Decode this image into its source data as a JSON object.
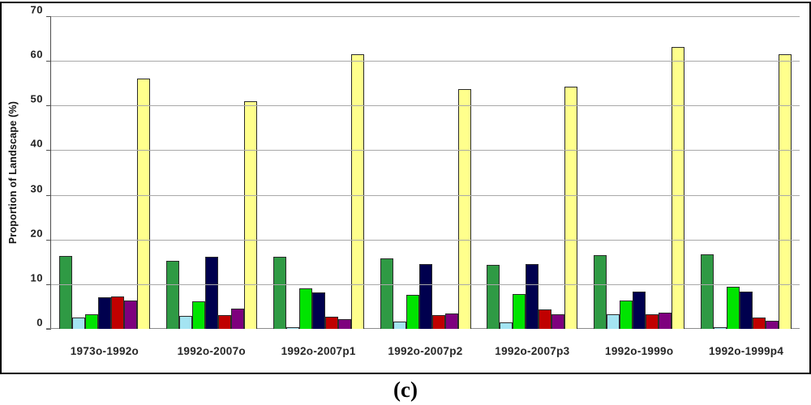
{
  "figure": {
    "caption": "(c)"
  },
  "chart_data": {
    "type": "bar",
    "title": "",
    "xlabel": "",
    "ylabel": "Proportion of Landscape  (%)",
    "ylim": [
      0,
      70
    ],
    "yticks": [
      0,
      10,
      20,
      30,
      40,
      50,
      60,
      70
    ],
    "grid": true,
    "legend_position": "none",
    "categories": [
      "1973o-1992o",
      "1992o-2007o",
      "1992o-2007p1",
      "1992o-2007p2",
      "1992o-2007p3",
      "1992o-1999o",
      "1992o-1999p4"
    ],
    "series": [
      {
        "name": "dark-green",
        "color": "#2f9a44",
        "values": [
          16.3,
          15.3,
          16.1,
          15.7,
          14.4,
          16.5,
          16.6
        ]
      },
      {
        "name": "light-blue",
        "color": "#a4e4f2",
        "values": [
          2.6,
          2.9,
          0.4,
          1.7,
          1.5,
          3.3,
          0.3
        ]
      },
      {
        "name": "bright-green",
        "color": "#00e400",
        "values": [
          3.3,
          6.2,
          9.0,
          7.7,
          7.8,
          6.4,
          9.4
        ]
      },
      {
        "name": "navy",
        "color": "#00004e",
        "values": [
          7.1,
          16.2,
          8.2,
          14.5,
          14.5,
          8.4,
          8.3
        ]
      },
      {
        "name": "dark-red",
        "color": "#c00000",
        "values": [
          7.3,
          3.1,
          2.7,
          3.0,
          4.4,
          3.2,
          2.5
        ]
      },
      {
        "name": "purple",
        "color": "#7e007e",
        "values": [
          6.3,
          4.5,
          2.2,
          3.4,
          3.3,
          3.7,
          1.9
        ]
      },
      {
        "name": "pale-yellow",
        "color": "#ffff8c",
        "values": [
          56.0,
          51.0,
          61.4,
          53.7,
          54.3,
          63.2,
          61.4
        ]
      }
    ]
  }
}
